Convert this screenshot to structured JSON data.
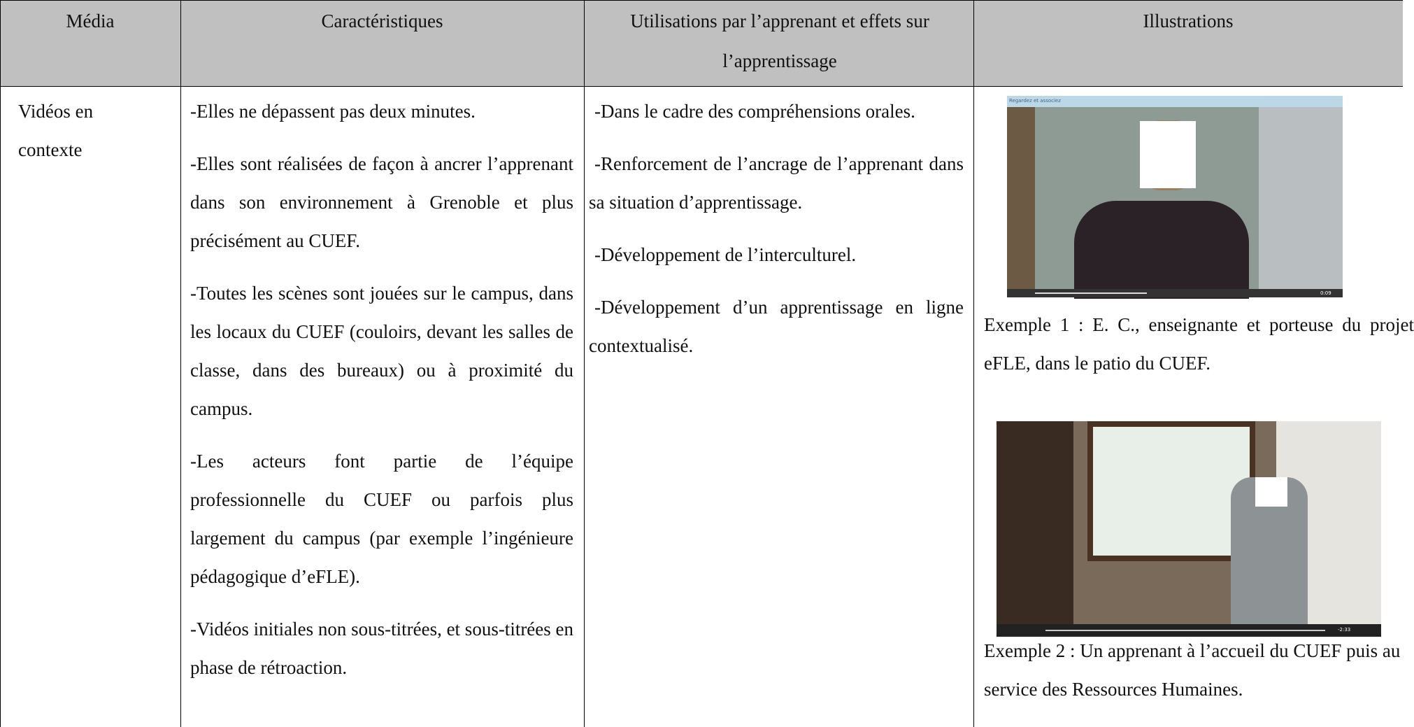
{
  "table": {
    "header": [
      "Média",
      "Caractéristiques",
      "Utilisations par l’apprenant et effets sur l’apprentissage",
      "Illustrations"
    ],
    "rows": [
      {
        "media": "Vidéos en contexte",
        "characteristics": [
          "-Elles ne dépassent pas deux minutes.",
          "-Elles sont réalisées de façon à ancrer l’apprenant dans son environnement à Grenoble et plus précisément au CUEF.",
          "-Toutes les scènes sont jouées sur le campus, dans les locaux du CUEF (couloirs, devant les salles de classe, dans des bureaux) ou à proximité du campus.",
          "-Les acteurs font partie de l’équipe professionnelle du CUEF ou parfois plus largement du campus (par exemple l’ingénieure pédagogique d’eFLE).",
          "-Vidéos initiales non sous-titrées, et sous-titrées en phase de rétroaction."
        ],
        "uses": [
          "-Dans le cadre des compréhensions orales.",
          "-Renforcement de l’ancrage de l’apprenant dans sa situation d’apprentissage.",
          "-Développement de l’interculturel.",
          "-Développement d’un apprentissage en ligne contextualisé."
        ],
        "illustrations": [
          {
            "video_title": "Regardez et associez",
            "video_time": "0:09",
            "caption": "Exemple 1 : E. C., enseignante et porteuse du projet eFLE, dans le patio du CUEF."
          },
          {
            "video_time": "-2:33",
            "caption": "Exemple 2 : Un apprenant à l’accueil du CUEF puis au service des Ressources Humaines."
          }
        ]
      }
    ]
  }
}
